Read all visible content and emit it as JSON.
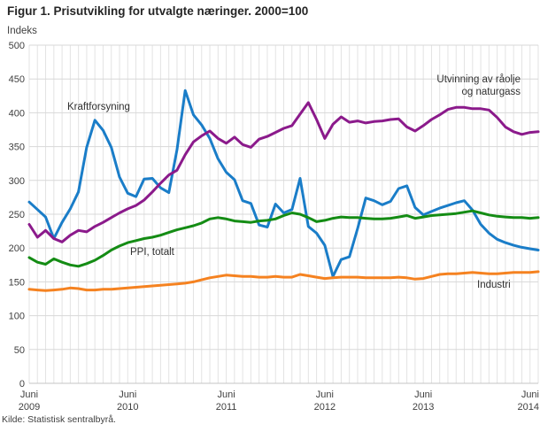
{
  "title": "Figur 1. Prisutvikling for utvalgte næringer. 2000=100",
  "y_axis_title": "Indeks",
  "source": "Kilde: Statistisk sentralbyrå.",
  "chart_data": {
    "type": "line",
    "title": "Figur 1. Prisutvikling for utvalgte næringer. 2000=100",
    "ylabel": "Indeks",
    "ylim": [
      0,
      500
    ],
    "y_tick_step": 50,
    "y_tick_labels": [
      "500",
      "450",
      "400",
      "350",
      "300",
      "250",
      "200",
      "150",
      "100",
      "50",
      "0"
    ],
    "months_total": 63,
    "x_range_note": "monthly points from Juni 2009 through August 2014",
    "x_tick_month_indices": [
      0,
      12,
      24,
      36,
      48,
      60
    ],
    "x_tick_labels": [
      {
        "line1": "Juni",
        "line2": "2009"
      },
      {
        "line1": "Juni",
        "line2": "2010"
      },
      {
        "line1": "Juni",
        "line2": "2011"
      },
      {
        "line1": "Juni",
        "line2": "2012"
      },
      {
        "line1": "Juni",
        "line2": "2013"
      },
      {
        "line1": "Juni",
        "line2": "2014"
      }
    ],
    "grid": {
      "h_color": "#d8d8d8",
      "v_color": "#e3e3e3",
      "axis_color": "#c4c4c4"
    },
    "legend_position": "inline-annotations",
    "series": [
      {
        "name": "Kraftforsyning",
        "color": "#1a7dc8",
        "values": [
          268,
          257,
          246,
          214,
          238,
          258,
          283,
          349,
          389,
          374,
          349,
          305,
          281,
          276,
          302,
          303,
          289,
          282,
          345,
          433,
          397,
          382,
          362,
          332,
          312,
          301,
          270,
          266,
          234,
          231,
          265,
          252,
          257,
          303,
          232,
          222,
          204,
          158,
          183,
          187,
          229,
          274,
          270,
          264,
          269,
          288,
          292,
          260,
          249,
          254,
          259,
          263,
          267,
          270,
          256,
          235,
          222,
          213,
          208,
          204,
          201,
          199,
          197
        ]
      },
      {
        "name": "Utvinning av råolje og naturgass",
        "color": "#8b1a8b",
        "values": [
          235,
          216,
          226,
          214,
          209,
          219,
          226,
          224,
          232,
          238,
          245,
          252,
          258,
          263,
          271,
          283,
          296,
          308,
          315,
          338,
          357,
          366,
          373,
          362,
          355,
          364,
          353,
          349,
          361,
          365,
          371,
          377,
          381,
          398,
          415,
          390,
          362,
          383,
          394,
          386,
          388,
          385,
          387,
          388,
          390,
          391,
          379,
          373,
          381,
          390,
          397,
          405,
          408,
          408,
          406,
          406,
          404,
          393,
          379,
          372,
          368,
          371,
          372
        ]
      },
      {
        "name": "PPI, totalt",
        "color": "#148c14",
        "values": [
          186,
          179,
          176,
          184,
          179,
          175,
          173,
          177,
          182,
          189,
          197,
          203,
          208,
          211,
          214,
          216,
          219,
          223,
          227,
          230,
          233,
          237,
          243,
          245,
          243,
          240,
          239,
          238,
          240,
          241,
          243,
          248,
          252,
          250,
          245,
          239,
          241,
          244,
          246,
          245,
          245,
          244,
          243,
          243,
          244,
          246,
          248,
          244,
          246,
          248,
          249,
          250,
          251,
          253,
          255,
          252,
          249,
          247,
          246,
          245,
          245,
          244,
          245
        ]
      },
      {
        "name": "Industri",
        "color": "#f58220",
        "values": [
          139,
          138,
          137,
          138,
          139,
          141,
          140,
          138,
          138,
          139,
          139,
          140,
          141,
          142,
          143,
          144,
          145,
          146,
          147,
          148,
          150,
          153,
          156,
          158,
          160,
          159,
          158,
          158,
          157,
          157,
          158,
          157,
          157,
          161,
          159,
          157,
          155,
          156,
          157,
          157,
          157,
          156,
          156,
          156,
          156,
          157,
          156,
          154,
          155,
          158,
          161,
          162,
          162,
          163,
          164,
          163,
          162,
          162,
          163,
          164,
          164,
          164,
          165
        ]
      }
    ],
    "annotations": [
      {
        "series": "Kraftforsyning",
        "lines": [
          "Kraftforsyning"
        ]
      },
      {
        "series": "Utvinning av råolje og naturgass",
        "lines": [
          "Utvinning av råolje",
          "og naturgass"
        ]
      },
      {
        "series": "PPI, totalt",
        "lines": [
          "PPI, totalt"
        ]
      },
      {
        "series": "Industri",
        "lines": [
          "Industri"
        ]
      }
    ]
  }
}
